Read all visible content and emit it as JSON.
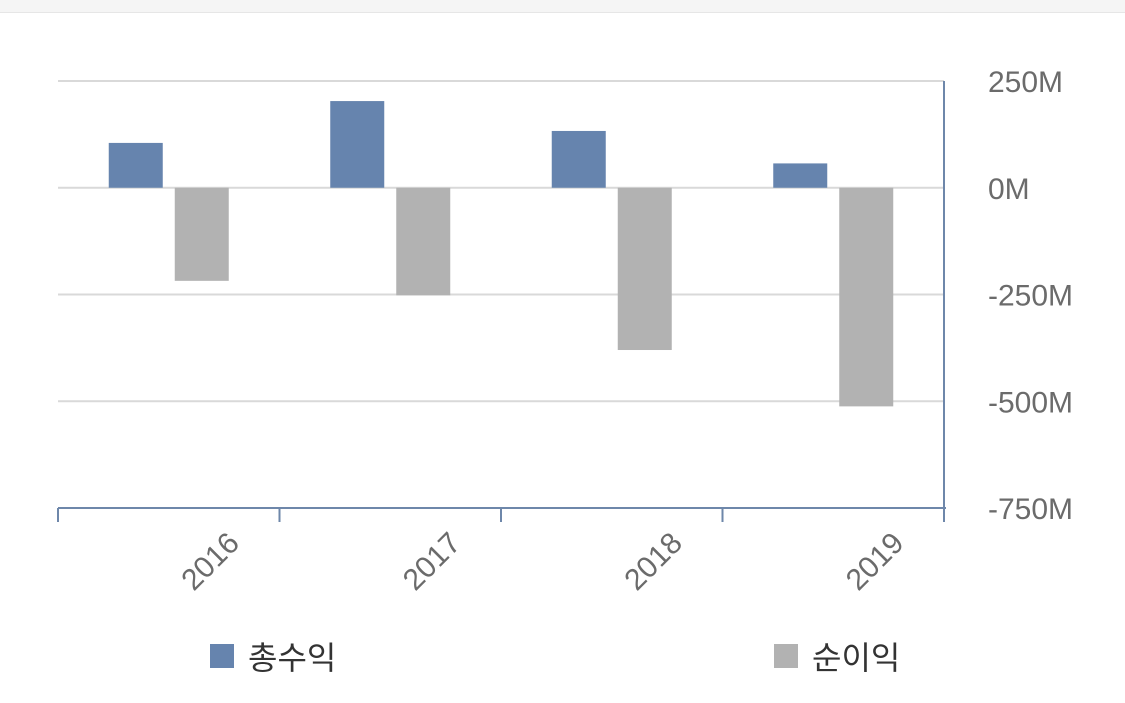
{
  "chart_data": {
    "type": "bar",
    "categories": [
      "2016",
      "2017",
      "2018",
      "2019"
    ],
    "series": [
      {
        "name": "총수익",
        "color": "#6684ae",
        "values": [
          105,
          203,
          133,
          57
        ]
      },
      {
        "name": "순이익",
        "color": "#b2b2b2",
        "values": [
          -218,
          -252,
          -380,
          -512
        ]
      }
    ],
    "y_ticks": [
      250,
      0,
      -250,
      -500,
      -750
    ],
    "y_tick_labels": [
      "250M",
      "0M",
      "-250M",
      "-500M",
      "-750M"
    ],
    "ylim": [
      -750,
      250
    ],
    "y_axis_side": "right",
    "grid": true,
    "legend_position": "bottom"
  }
}
